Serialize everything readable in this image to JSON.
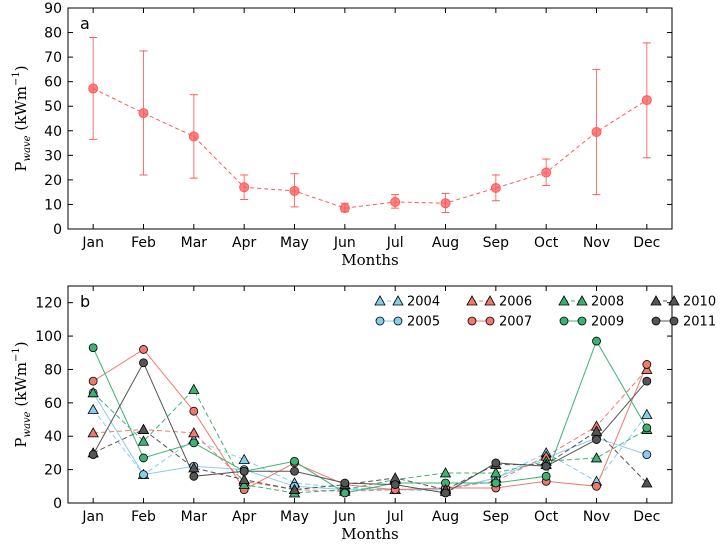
{
  "chart_data": [
    {
      "panel_label": "a",
      "type": "line",
      "categories": [
        "Jan",
        "Feb",
        "Mar",
        "Apr",
        "May",
        "Jun",
        "Jul",
        "Aug",
        "Sep",
        "Oct",
        "Nov",
        "Dec"
      ],
      "xlabel": "Months",
      "ylabel": "P",
      "ylabel_sub": "wave",
      "ylabel_unit": "(kWm",
      "ylabel_exp": "−1",
      "ylabel_close": ")",
      "ylim": [
        0,
        90
      ],
      "yticks": [
        "0",
        "10",
        "20",
        "30",
        "40",
        "50",
        "60",
        "70",
        "80",
        "90"
      ],
      "grid": false,
      "color": "#ff5a5a",
      "series": [
        {
          "values": [
            57.2,
            47.2,
            37.7,
            17.0,
            15.5,
            8.5,
            11.0,
            10.5,
            16.7,
            23.0,
            39.5,
            52.5
          ],
          "err_low": [
            36.5,
            22.0,
            20.7,
            12.0,
            9.0,
            7.0,
            8.5,
            6.7,
            11.5,
            17.7,
            14.0,
            29.0
          ],
          "err_high": [
            78.0,
            72.5,
            54.7,
            22.0,
            22.5,
            10.5,
            14.0,
            14.5,
            22.0,
            28.5,
            65.0,
            75.8
          ]
        }
      ]
    },
    {
      "panel_label": "b",
      "type": "line",
      "categories": [
        "Jan",
        "Feb",
        "Mar",
        "Apr",
        "May",
        "Jun",
        "Jul",
        "Aug",
        "Sep",
        "Oct",
        "Nov",
        "Dec"
      ],
      "xlabel": "Months",
      "ylabel": "P",
      "ylabel_sub": "wave",
      "ylabel_unit": "(kWm",
      "ylabel_exp": "−1",
      "ylabel_close": ")",
      "ylim": [
        0,
        130
      ],
      "yticks": [
        "0",
        "20",
        "40",
        "60",
        "80",
        "100",
        "120"
      ],
      "grid": false,
      "legend_position": "top-right",
      "series": [
        {
          "name": "2004",
          "color": "#87ceeb",
          "dashed": true,
          "marker": "triangle",
          "values": [
            56,
            17,
            38,
            26,
            12,
            9,
            8,
            7,
            15,
            30,
            13,
            53
          ]
        },
        {
          "name": "2005",
          "color": "#87ceeb",
          "dashed": false,
          "marker": "circle",
          "values": [
            66,
            17,
            22,
            20,
            10,
            8,
            8,
            8,
            15,
            27,
            39,
            29
          ]
        },
        {
          "name": "2006",
          "color": "#f0796f",
          "dashed": true,
          "marker": "triangle",
          "values": [
            42,
            44,
            42,
            13,
            8,
            7,
            8,
            9,
            13,
            28,
            46,
            80
          ]
        },
        {
          "name": "2007",
          "color": "#f0796f",
          "dashed": false,
          "marker": "circle",
          "values": [
            73,
            92,
            55,
            8,
            24,
            11,
            8,
            9,
            9,
            13,
            10,
            83
          ]
        },
        {
          "name": "2008",
          "color": "#3cb371",
          "dashed": true,
          "marker": "triangle",
          "values": [
            66,
            37,
            68,
            11,
            6,
            8,
            14,
            18,
            18,
            25,
            27,
            44
          ]
        },
        {
          "name": "2009",
          "color": "#3cb371",
          "dashed": false,
          "marker": "circle",
          "values": [
            93,
            27,
            36,
            19,
            25,
            6,
            12,
            12,
            12,
            16,
            97,
            45
          ]
        },
        {
          "name": "2010",
          "color": "#555555",
          "dashed": true,
          "marker": "triangle",
          "values": [
            30,
            44,
            21,
            14,
            8,
            11,
            15,
            8,
            23,
            23,
            43,
            12
          ]
        },
        {
          "name": "2011",
          "color": "#555555",
          "dashed": false,
          "marker": "circle",
          "values": [
            29,
            84,
            16,
            19,
            19,
            12,
            11,
            6,
            24,
            22,
            38,
            73
          ]
        }
      ]
    }
  ]
}
